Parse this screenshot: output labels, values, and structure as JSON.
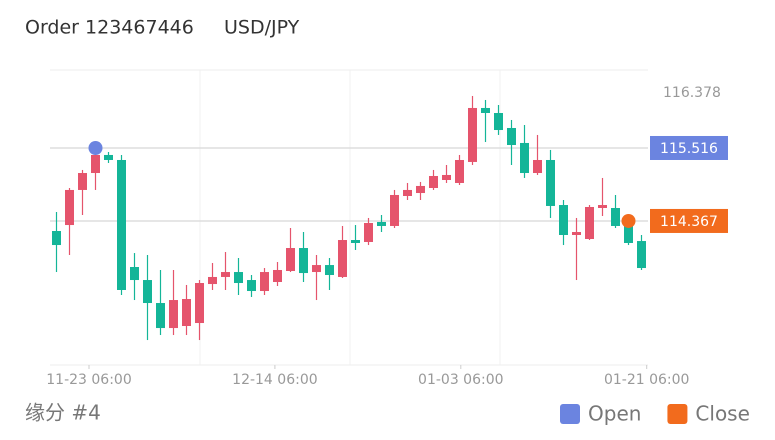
{
  "chart_data": {
    "type": "candlestick",
    "title": "Order 123467446",
    "subtitle": "USD/JPY",
    "footer": "缘分 #4",
    "categories": [
      null,
      null,
      null,
      null,
      null,
      null,
      null,
      null,
      null,
      null,
      null,
      null,
      null,
      null,
      null,
      null,
      null,
      null,
      null,
      null,
      null,
      null,
      null,
      null,
      null,
      null,
      null,
      null,
      null,
      null,
      null,
      null,
      null,
      null,
      null,
      null,
      null,
      null,
      null,
      null,
      null,
      null,
      null,
      null,
      null,
      null
    ],
    "open": [
      114.209,
      114.303,
      114.855,
      115.122,
      115.406,
      115.327,
      113.642,
      113.437,
      113.075,
      112.681,
      112.713,
      112.76,
      113.374,
      113.485,
      113.563,
      113.437,
      113.264,
      113.406,
      113.579,
      113.941,
      113.563,
      113.673,
      113.485,
      114.067,
      114.036,
      114.351,
      114.288,
      114.76,
      114.807,
      114.886,
      115.012,
      114.965,
      115.296,
      116.146,
      116.067,
      115.831,
      115.595,
      115.122,
      115.327,
      114.618,
      114.146,
      114.083,
      114.571,
      114.571,
      114.303,
      114.051
    ],
    "high": [
      114.508,
      114.886,
      115.17,
      115.516,
      115.453,
      115.406,
      113.862,
      113.831,
      113.595,
      113.595,
      113.359,
      113.437,
      113.705,
      113.878,
      113.784,
      113.516,
      113.626,
      113.721,
      114.256,
      114.193,
      113.831,
      113.784,
      114.288,
      114.303,
      114.414,
      114.461,
      114.855,
      114.965,
      114.981,
      115.17,
      115.248,
      115.406,
      116.335,
      116.272,
      116.193,
      115.957,
      115.878,
      115.721,
      115.485,
      114.697,
      114.414,
      114.618,
      115.044,
      114.776,
      114.461,
      114.146
    ],
    "low": [
      113.563,
      113.831,
      114.461,
      114.855,
      115.28,
      113.201,
      113.122,
      112.492,
      112.571,
      112.571,
      112.571,
      112.492,
      113.28,
      113.28,
      113.201,
      113.17,
      113.201,
      113.343,
      113.563,
      113.406,
      113.122,
      113.28,
      113.469,
      113.91,
      113.988,
      114.193,
      114.256,
      114.697,
      114.697,
      114.855,
      114.965,
      114.933,
      115.248,
      115.61,
      115.721,
      115.248,
      115.044,
      115.091,
      114.414,
      113.988,
      113.437,
      114.067,
      114.445,
      114.256,
      113.988,
      113.595
    ],
    "close": [
      113.988,
      114.855,
      115.122,
      115.406,
      115.327,
      113.28,
      113.437,
      113.075,
      112.681,
      113.122,
      113.138,
      113.39,
      113.485,
      113.563,
      113.39,
      113.264,
      113.563,
      113.595,
      113.941,
      113.547,
      113.673,
      113.516,
      114.067,
      114.02,
      114.335,
      114.288,
      114.776,
      114.855,
      114.918,
      115.075,
      115.091,
      115.327,
      116.146,
      116.067,
      115.799,
      115.563,
      115.122,
      115.327,
      114.603,
      114.146,
      114.193,
      114.587,
      114.618,
      114.288,
      114.02,
      113.626
    ],
    "up_color": "#e5546c",
    "down_color": "#14b598",
    "ylim": [
      112.099,
      116.744
    ],
    "yticks": [
      116.378
    ],
    "xlim": [
      -0.5,
      45.5
    ],
    "xticks": [
      {
        "value": 2.5,
        "label": "11-23 06:00"
      },
      {
        "value": 16.8,
        "label": "12-14 06:00"
      },
      {
        "value": 31.1,
        "label": "01-03 06:00"
      },
      {
        "value": 45.4,
        "label": "01-21 06:00"
      }
    ],
    "markers": [
      {
        "name": "Open",
        "color": "#6b84e0",
        "x": 3,
        "value": 115.516
      },
      {
        "name": "Close",
        "color": "#f26b1d",
        "x": 44,
        "value": 114.367
      }
    ],
    "legend": "bottom-right"
  }
}
